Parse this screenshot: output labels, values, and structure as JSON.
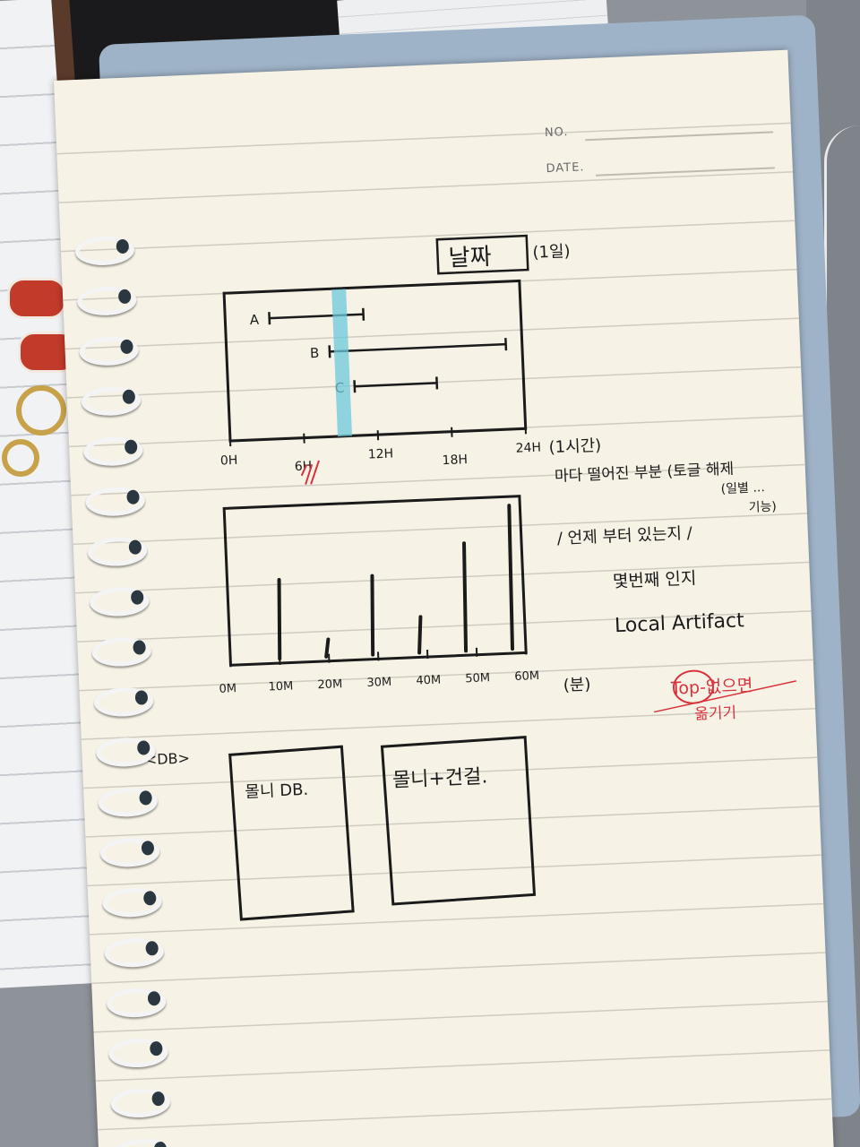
{
  "notebook_header": {
    "no_label": "NO.",
    "date_label": "DATE."
  },
  "sketch_title": {
    "text": "날짜",
    "note": "(1일)"
  },
  "timeline_chart": {
    "rows": [
      {
        "label": "A",
        "start_hour": 3,
        "end_hour": 11
      },
      {
        "label": "B",
        "start_hour": 8,
        "end_hour": 23
      },
      {
        "label": "C",
        "start_hour": 10,
        "end_hour": 17
      }
    ],
    "highlight_hour": 9,
    "axis_ticks": [
      "0H",
      "6H",
      "12H",
      "18H",
      "24H"
    ],
    "unit_note": "(1시간)"
  },
  "bar_chart": {
    "axis_ticks": [
      "0M",
      "10M",
      "20M",
      "30M",
      "40M",
      "50M",
      "60M"
    ],
    "bars": [
      0.55,
      0.12,
      0.55,
      0.25,
      0.75,
      1.0
    ],
    "unit_note": "(분)"
  },
  "side_notes": {
    "line1": "마다 떨어진 부분 (토글 해제",
    "line2": "(일별 ...",
    "line3": "기능)",
    "line4": "/ 언제 부터 있는지 /",
    "line5": "몇번째 인지",
    "line6": "Local Artifact"
  },
  "red_note": {
    "line1": "Top-없으면",
    "line2": "옮기기"
  },
  "db_section": {
    "label": "<DB>",
    "box1": "몰니 DB.",
    "box2": "몰니+건걸."
  },
  "colors": {
    "ink": "#1b1b1b",
    "red_ink": "#d8323c",
    "highlighter": "#6cc8dc",
    "paper": "#f6f2e6",
    "cover": "#9fb3c8"
  }
}
